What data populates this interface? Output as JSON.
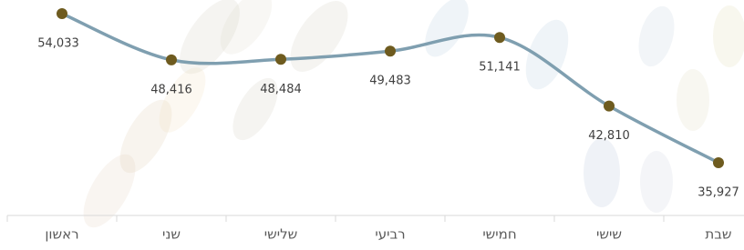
{
  "chart_data": {
    "type": "line",
    "categories": [
      "ראשון",
      "שני",
      "שלישי",
      "רביעי",
      "חמישי",
      "שישי",
      "שבת"
    ],
    "values": [
      54033,
      48416,
      48484,
      49483,
      51141,
      42810,
      35927
    ],
    "value_labels": [
      "54,033",
      "48,416",
      "48,484",
      "49,483",
      "51,141",
      "42,810",
      "35,927"
    ],
    "color": "#7f9fb0",
    "marker_color": "#6e5b1f",
    "smooth": true
  }
}
